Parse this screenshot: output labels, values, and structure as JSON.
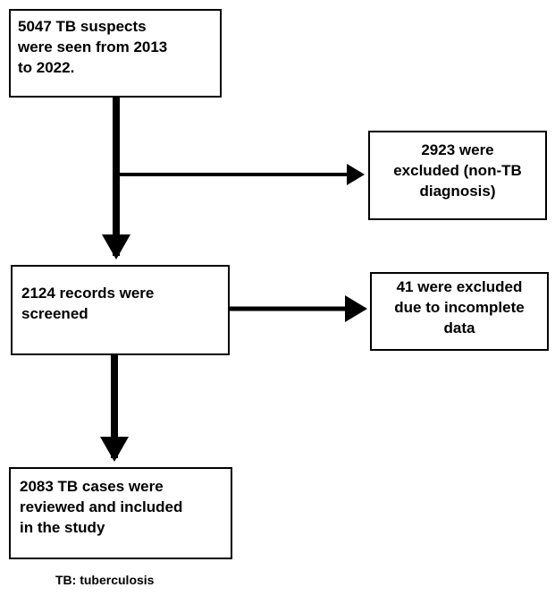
{
  "boxes": {
    "suspects": "5047 TB suspects\nwere seen from 2013\nto 2022.",
    "excluded_non_tb": "2923 were\nexcluded (non-TB\ndiagnosis)",
    "screened": "2124 records were\nscreened",
    "excluded_incomplete": "41 were excluded\ndue to incomplete\ndata",
    "included": "2083 TB cases were\nreviewed and included\nin the study"
  },
  "footnote": "TB: tuberculosis"
}
